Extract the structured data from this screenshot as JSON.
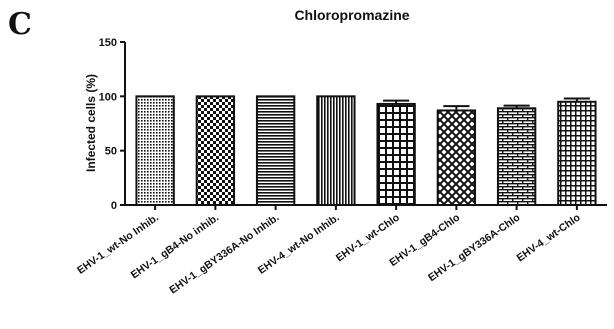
{
  "panel_label": "C",
  "chart_data": {
    "type": "bar",
    "title": "Chloropromazine",
    "xlabel": "",
    "ylabel": "Infected cells (%)",
    "ylim": [
      0,
      150
    ],
    "yticks": [
      0,
      50,
      100,
      150
    ],
    "categories": [
      "EHV-1_wt-No Inhib.",
      "EHV-1_gB4-No inhib.",
      "EHV-1_gBY336A-No Inhib.",
      "EHV-4_wt-No Inhib.",
      "EHV-1_wt-Chlo",
      "EHV-1_gB4-Chlo",
      "EHV-1_gBY336A-Chlo",
      "EHV-4_wt-Chlo"
    ],
    "values": [
      100,
      100,
      100,
      100,
      93,
      87,
      89,
      95
    ],
    "errors": [
      0,
      0,
      0,
      0,
      3,
      4,
      2.5,
      3
    ],
    "patterns": [
      "dots",
      "checker",
      "hlines",
      "vlines",
      "grid",
      "diamond",
      "brick",
      "dense-grid"
    ],
    "grid": false,
    "bar_color": "#111111"
  }
}
